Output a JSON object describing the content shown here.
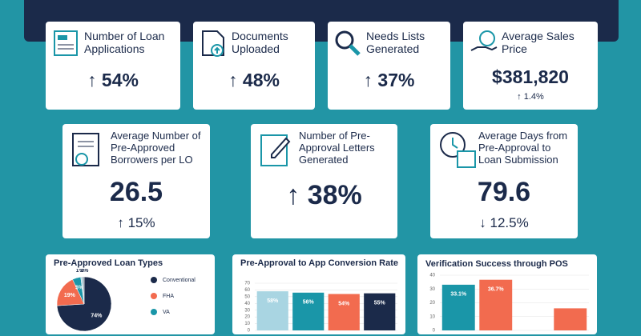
{
  "kpis": [
    {
      "label": "Number of Loan Applications",
      "value": "↑ 54%"
    },
    {
      "label": "Documents Uploaded",
      "value": "↑ 48%"
    },
    {
      "label": "Needs Lists Generated",
      "value": "↑ 37%"
    },
    {
      "label": "Average Sales Price",
      "value": "$381,820",
      "change": "↑ 1.4%"
    },
    {
      "label": "Average Number of Pre-Approved Borrowers per LO",
      "value": "26.5",
      "change": "↑ 15%"
    },
    {
      "label": "Number of Pre-Approval Letters Generated",
      "value": "↑ 38%"
    },
    {
      "label": "Average Days from Pre-Approval to Loan Submission",
      "value": "79.6",
      "change": "↓ 12.5%"
    }
  ],
  "chart_data": [
    {
      "type": "pie",
      "title": "Pre-Approved Loan Types",
      "categories": [
        "Conventional",
        "FHA",
        "VA",
        null,
        null
      ],
      "values": [
        74,
        19,
        5,
        1,
        1
      ],
      "value_labels": [
        "74%",
        "19%",
        "5%",
        "1%",
        "1%"
      ],
      "colors": [
        "#1b2a4a",
        "#f26b4f",
        "#1a96a8",
        "#a9d5e2",
        "#8a9aa8"
      ]
    },
    {
      "type": "bar",
      "title": "Pre-Approval to App Conversion Rate",
      "categories": [
        null,
        null,
        null,
        null
      ],
      "values": [
        58,
        56,
        54,
        55
      ],
      "value_labels": [
        "58%",
        "56%",
        "54%",
        "55%"
      ],
      "colors": [
        "#a9d5e2",
        "#1a96a8",
        "#f26b4f",
        "#1b2a4a"
      ],
      "ylim": [
        0,
        70
      ],
      "yticks": [
        0,
        10,
        20,
        30,
        40,
        50,
        60,
        70
      ],
      "grid": true
    },
    {
      "type": "bar",
      "title": "Verification Success through POS",
      "categories": [
        null,
        null,
        null,
        null
      ],
      "values": [
        33.1,
        36.7,
        null,
        16
      ],
      "value_labels": [
        "33.1%",
        "36.7%",
        null,
        null
      ],
      "colors": [
        "#1a96a8",
        "#f26b4f",
        "#1b2a4a",
        "#f26b4f"
      ],
      "ylim": [
        0,
        40
      ],
      "yticks": [
        0,
        10,
        20,
        30,
        40
      ],
      "grid": true
    }
  ]
}
